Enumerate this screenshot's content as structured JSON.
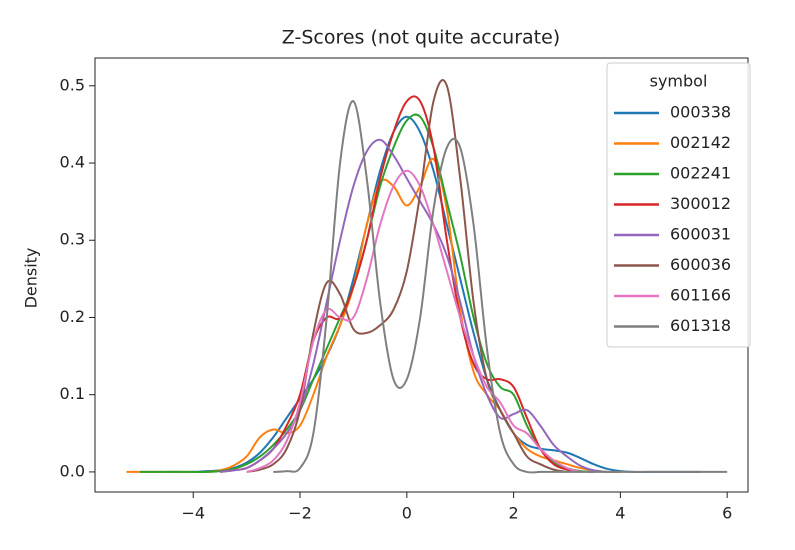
{
  "chart_data": {
    "type": "line",
    "title": "Z-Scores (not quite accurate)",
    "y_label": "Density",
    "xlim": [
      -5.84,
      6.39
    ],
    "ylim": [
      -0.026,
      0.536
    ],
    "xticks": [
      {
        "value": -4,
        "label": "−4"
      },
      {
        "value": -2,
        "label": "−2"
      },
      0,
      2,
      4,
      6
    ],
    "yticks": [
      {
        "value": 0,
        "label": "0.0"
      },
      0.1,
      0.2,
      0.3,
      0.4,
      0.5
    ],
    "legend_title": "symbol",
    "legend": "upper right",
    "x": [
      -5.25,
      -5,
      -4.75,
      -4.5,
      -4.25,
      -4,
      -3.75,
      -3.5,
      -3.25,
      -3,
      -2.75,
      -2.5,
      -2.25,
      -2,
      -1.75,
      -1.5,
      -1.25,
      -1,
      -0.75,
      -0.5,
      -0.25,
      0,
      0.25,
      0.5,
      0.75,
      1,
      1.25,
      1.5,
      1.75,
      2,
      2.25,
      2.5,
      2.75,
      3,
      3.25,
      3.5,
      3.75,
      4,
      4.25,
      4.5,
      4.75,
      5,
      5.25,
      5.5,
      5.75,
      6
    ],
    "series": [
      {
        "name": "000338",
        "color": "#1f77b4",
        "values": [
          null,
          null,
          null,
          0,
          0,
          0,
          0.001,
          0.002,
          0.005,
          0.012,
          0.025,
          0.045,
          0.07,
          0.095,
          0.12,
          0.15,
          0.19,
          0.25,
          0.32,
          0.39,
          0.44,
          0.46,
          0.44,
          0.39,
          0.32,
          0.25,
          0.18,
          0.12,
          0.08,
          0.05,
          0.035,
          0.03,
          0.028,
          0.025,
          0.018,
          0.01,
          0.004,
          0.001,
          0,
          0,
          0,
          0,
          0,
          0,
          null,
          null
        ]
      },
      {
        "name": "002142",
        "color": "#ff7f0e",
        "values": [
          0,
          0,
          0,
          0,
          0,
          0,
          0,
          0.002,
          0.008,
          0.02,
          0.045,
          0.055,
          0.05,
          0.06,
          0.1,
          0.15,
          0.19,
          0.24,
          0.32,
          0.375,
          0.37,
          0.345,
          0.37,
          0.405,
          0.34,
          0.21,
          0.13,
          0.1,
          0.08,
          0.05,
          0.03,
          0.02,
          0.015,
          0.01,
          0.005,
          0.002,
          0,
          0,
          null,
          null,
          null,
          null,
          null,
          null,
          null,
          null
        ]
      },
      {
        "name": "002241",
        "color": "#2ca02c",
        "values": [
          null,
          0,
          0,
          0,
          0,
          0,
          0,
          0.001,
          0.004,
          0.01,
          0.02,
          0.035,
          0.055,
          0.08,
          0.12,
          0.16,
          0.2,
          0.24,
          0.3,
          0.37,
          0.42,
          0.455,
          0.46,
          0.42,
          0.35,
          0.28,
          0.2,
          0.14,
          0.11,
          0.1,
          0.06,
          0.03,
          0.012,
          0.005,
          0.001,
          0,
          null,
          null,
          null,
          null,
          null,
          null,
          null,
          null,
          null,
          null
        ]
      },
      {
        "name": "300012",
        "color": "#d62728",
        "values": [
          null,
          null,
          null,
          null,
          null,
          null,
          null,
          0,
          0.002,
          0.005,
          0.015,
          0.03,
          0.06,
          0.1,
          0.17,
          0.2,
          0.2,
          0.24,
          0.3,
          0.38,
          0.44,
          0.48,
          0.48,
          0.42,
          0.3,
          0.2,
          0.14,
          0.12,
          0.12,
          0.11,
          0.07,
          0.03,
          0.01,
          0.003,
          0,
          null,
          null,
          null,
          null,
          null,
          null,
          null,
          null,
          null,
          null,
          null
        ]
      },
      {
        "name": "600031",
        "color": "#9467bd",
        "values": [
          null,
          null,
          null,
          null,
          null,
          null,
          null,
          0,
          0.002,
          0.005,
          0.015,
          0.03,
          0.05,
          0.08,
          0.14,
          0.22,
          0.3,
          0.37,
          0.415,
          0.43,
          0.41,
          0.38,
          0.35,
          0.32,
          0.28,
          0.22,
          0.15,
          0.1,
          0.07,
          0.075,
          0.08,
          0.06,
          0.035,
          0.02,
          0.008,
          0.002,
          0,
          null,
          null,
          null,
          null,
          null,
          null,
          null,
          null,
          null
        ]
      },
      {
        "name": "600036",
        "color": "#8c564b",
        "values": [
          null,
          null,
          null,
          null,
          null,
          null,
          null,
          null,
          null,
          0,
          0.003,
          0.01,
          0.03,
          0.08,
          0.18,
          0.245,
          0.23,
          0.185,
          0.18,
          0.19,
          0.21,
          0.26,
          0.36,
          0.48,
          0.5,
          0.38,
          0.22,
          0.12,
          0.08,
          0.05,
          0.02,
          0.01,
          0.003,
          0,
          null,
          null,
          null,
          null,
          null,
          null,
          null,
          null,
          null,
          null,
          null,
          null
        ]
      },
      {
        "name": "601166",
        "color": "#e377c2",
        "values": [
          null,
          null,
          null,
          null,
          null,
          null,
          null,
          null,
          null,
          0,
          0.005,
          0.015,
          0.04,
          0.09,
          0.17,
          0.21,
          0.2,
          0.2,
          0.25,
          0.32,
          0.37,
          0.39,
          0.37,
          0.32,
          0.26,
          0.2,
          0.15,
          0.11,
          0.09,
          0.06,
          0.05,
          0.03,
          0.015,
          0.005,
          0,
          null,
          null,
          null,
          null,
          null,
          null,
          null,
          null,
          null,
          null,
          null
        ]
      },
      {
        "name": "601318",
        "color": "#7f7f7f",
        "values": [
          null,
          null,
          null,
          null,
          null,
          null,
          null,
          null,
          null,
          null,
          null,
          0,
          0.001,
          0.005,
          0.05,
          0.2,
          0.4,
          0.48,
          0.38,
          0.22,
          0.12,
          0.12,
          0.2,
          0.34,
          0.42,
          0.42,
          0.32,
          0.16,
          0.05,
          0.01,
          0,
          0,
          0,
          0,
          0,
          0,
          0,
          0,
          0,
          0,
          0,
          0,
          0,
          0,
          0,
          0
        ]
      }
    ]
  }
}
